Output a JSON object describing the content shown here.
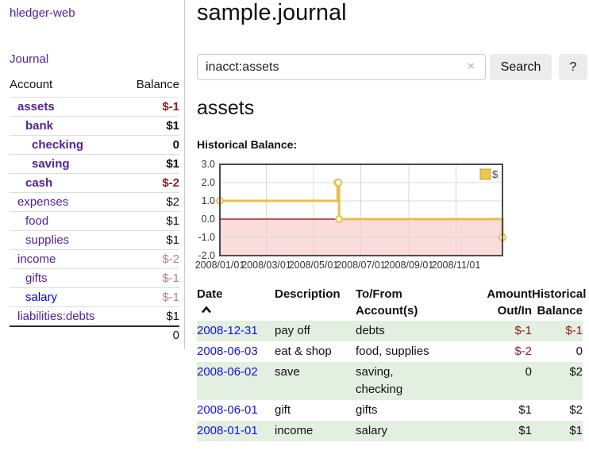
{
  "app": {
    "brand": "hledger-web"
  },
  "nav": {
    "journal": "Journal"
  },
  "sidebar": {
    "columns": {
      "account": "Account",
      "balance": "Balance"
    },
    "accounts": [
      {
        "name": "assets",
        "balance": "$-1"
      },
      {
        "name": "bank",
        "balance": "$1"
      },
      {
        "name": "checking",
        "balance": "0"
      },
      {
        "name": "saving",
        "balance": "$1"
      },
      {
        "name": "cash",
        "balance": "$-2"
      },
      {
        "name": "expenses",
        "balance": "$2"
      },
      {
        "name": "food",
        "balance": "$1"
      },
      {
        "name": "supplies",
        "balance": "$1"
      },
      {
        "name": "income",
        "balance": "$-2"
      },
      {
        "name": "gifts",
        "balance": "$-1"
      },
      {
        "name": "salary",
        "balance": "$-1"
      },
      {
        "name": "liabilities:debts",
        "balance": "$1"
      }
    ],
    "total": "0"
  },
  "header": {
    "title": "sample.journal"
  },
  "search": {
    "value": "inacct:assets",
    "clear_label": "×",
    "button": "Search",
    "help": "?"
  },
  "main": {
    "account_title": "assets",
    "chart_label": "Historical Balance:"
  },
  "chart_data": {
    "type": "line",
    "step": true,
    "title": "Historical Balance",
    "series": [
      {
        "name": "$",
        "points": [
          {
            "date": "2008-01-01",
            "value": 1
          },
          {
            "date": "2008-06-01",
            "value": 2
          },
          {
            "date": "2008-06-02",
            "value": 2
          },
          {
            "date": "2008-06-03",
            "value": 0
          },
          {
            "date": "2008-12-31",
            "value": -1
          }
        ]
      }
    ],
    "xrange": [
      "2008-01-01",
      "2008-12-31"
    ],
    "ylim": [
      -2,
      3
    ],
    "yticks": [
      {
        "value": 3,
        "label": "3.0"
      },
      {
        "value": 2,
        "label": "2.0"
      },
      {
        "value": 1,
        "label": "1.0"
      },
      {
        "value": 0,
        "label": "0.0"
      },
      {
        "value": -1,
        "label": "-1.0"
      },
      {
        "value": -2,
        "label": "-2.0"
      }
    ],
    "xticks": [
      {
        "date": "2008-01-01",
        "label": "2008/01/01"
      },
      {
        "date": "2008-03-01",
        "label": "2008/03/01"
      },
      {
        "date": "2008-05-01",
        "label": "2008/05/01"
      },
      {
        "date": "2008-07-01",
        "label": "2008/07/01"
      },
      {
        "date": "2008-09-01",
        "label": "2008/09/01"
      },
      {
        "date": "2008-11-01",
        "label": "2008/11/01"
      }
    ],
    "legend_position": "top-right",
    "grid": true,
    "colors": {
      "series": "#e5c04d",
      "negative_fill": "#fbdcdc",
      "zero_line": "#8b0000",
      "legend_fill": "#eac951",
      "legend_border": "#bfa034",
      "grid": "#d9d9d9",
      "border": "#4a4a4a"
    }
  },
  "register": {
    "columns": {
      "date": "Date",
      "description": "Description",
      "account_l1": "To/From",
      "account_l2": "Account(s)",
      "amount_l1": "Amount",
      "amount_l2": "Out/In",
      "balance_l1": "Historical",
      "balance_l2": "Balance"
    },
    "rows": [
      {
        "date": "2008-12-31",
        "description": "pay off",
        "accounts": "debts",
        "amount": "$-1",
        "balance": "$-1"
      },
      {
        "date": "2008-06-03",
        "description": "eat & shop",
        "accounts": "food, supplies",
        "amount": "$-2",
        "balance": "0"
      },
      {
        "date": "2008-06-02",
        "description": "save",
        "accounts": "saving,\nchecking",
        "amount": "0",
        "balance": "$2"
      },
      {
        "date": "2008-06-01",
        "description": "gift",
        "accounts": "gifts",
        "amount": "$1",
        "balance": "$2"
      },
      {
        "date": "2008-01-01",
        "description": "income",
        "accounts": "salary",
        "amount": "$1",
        "balance": "$1"
      }
    ]
  },
  "colors": {
    "accent_purple": "#54219b",
    "link_blue": "#0000ee",
    "negative": "#8c1c1c",
    "negative_muted": "#c07f7f",
    "row_stripe_green": "#e3efe1"
  }
}
